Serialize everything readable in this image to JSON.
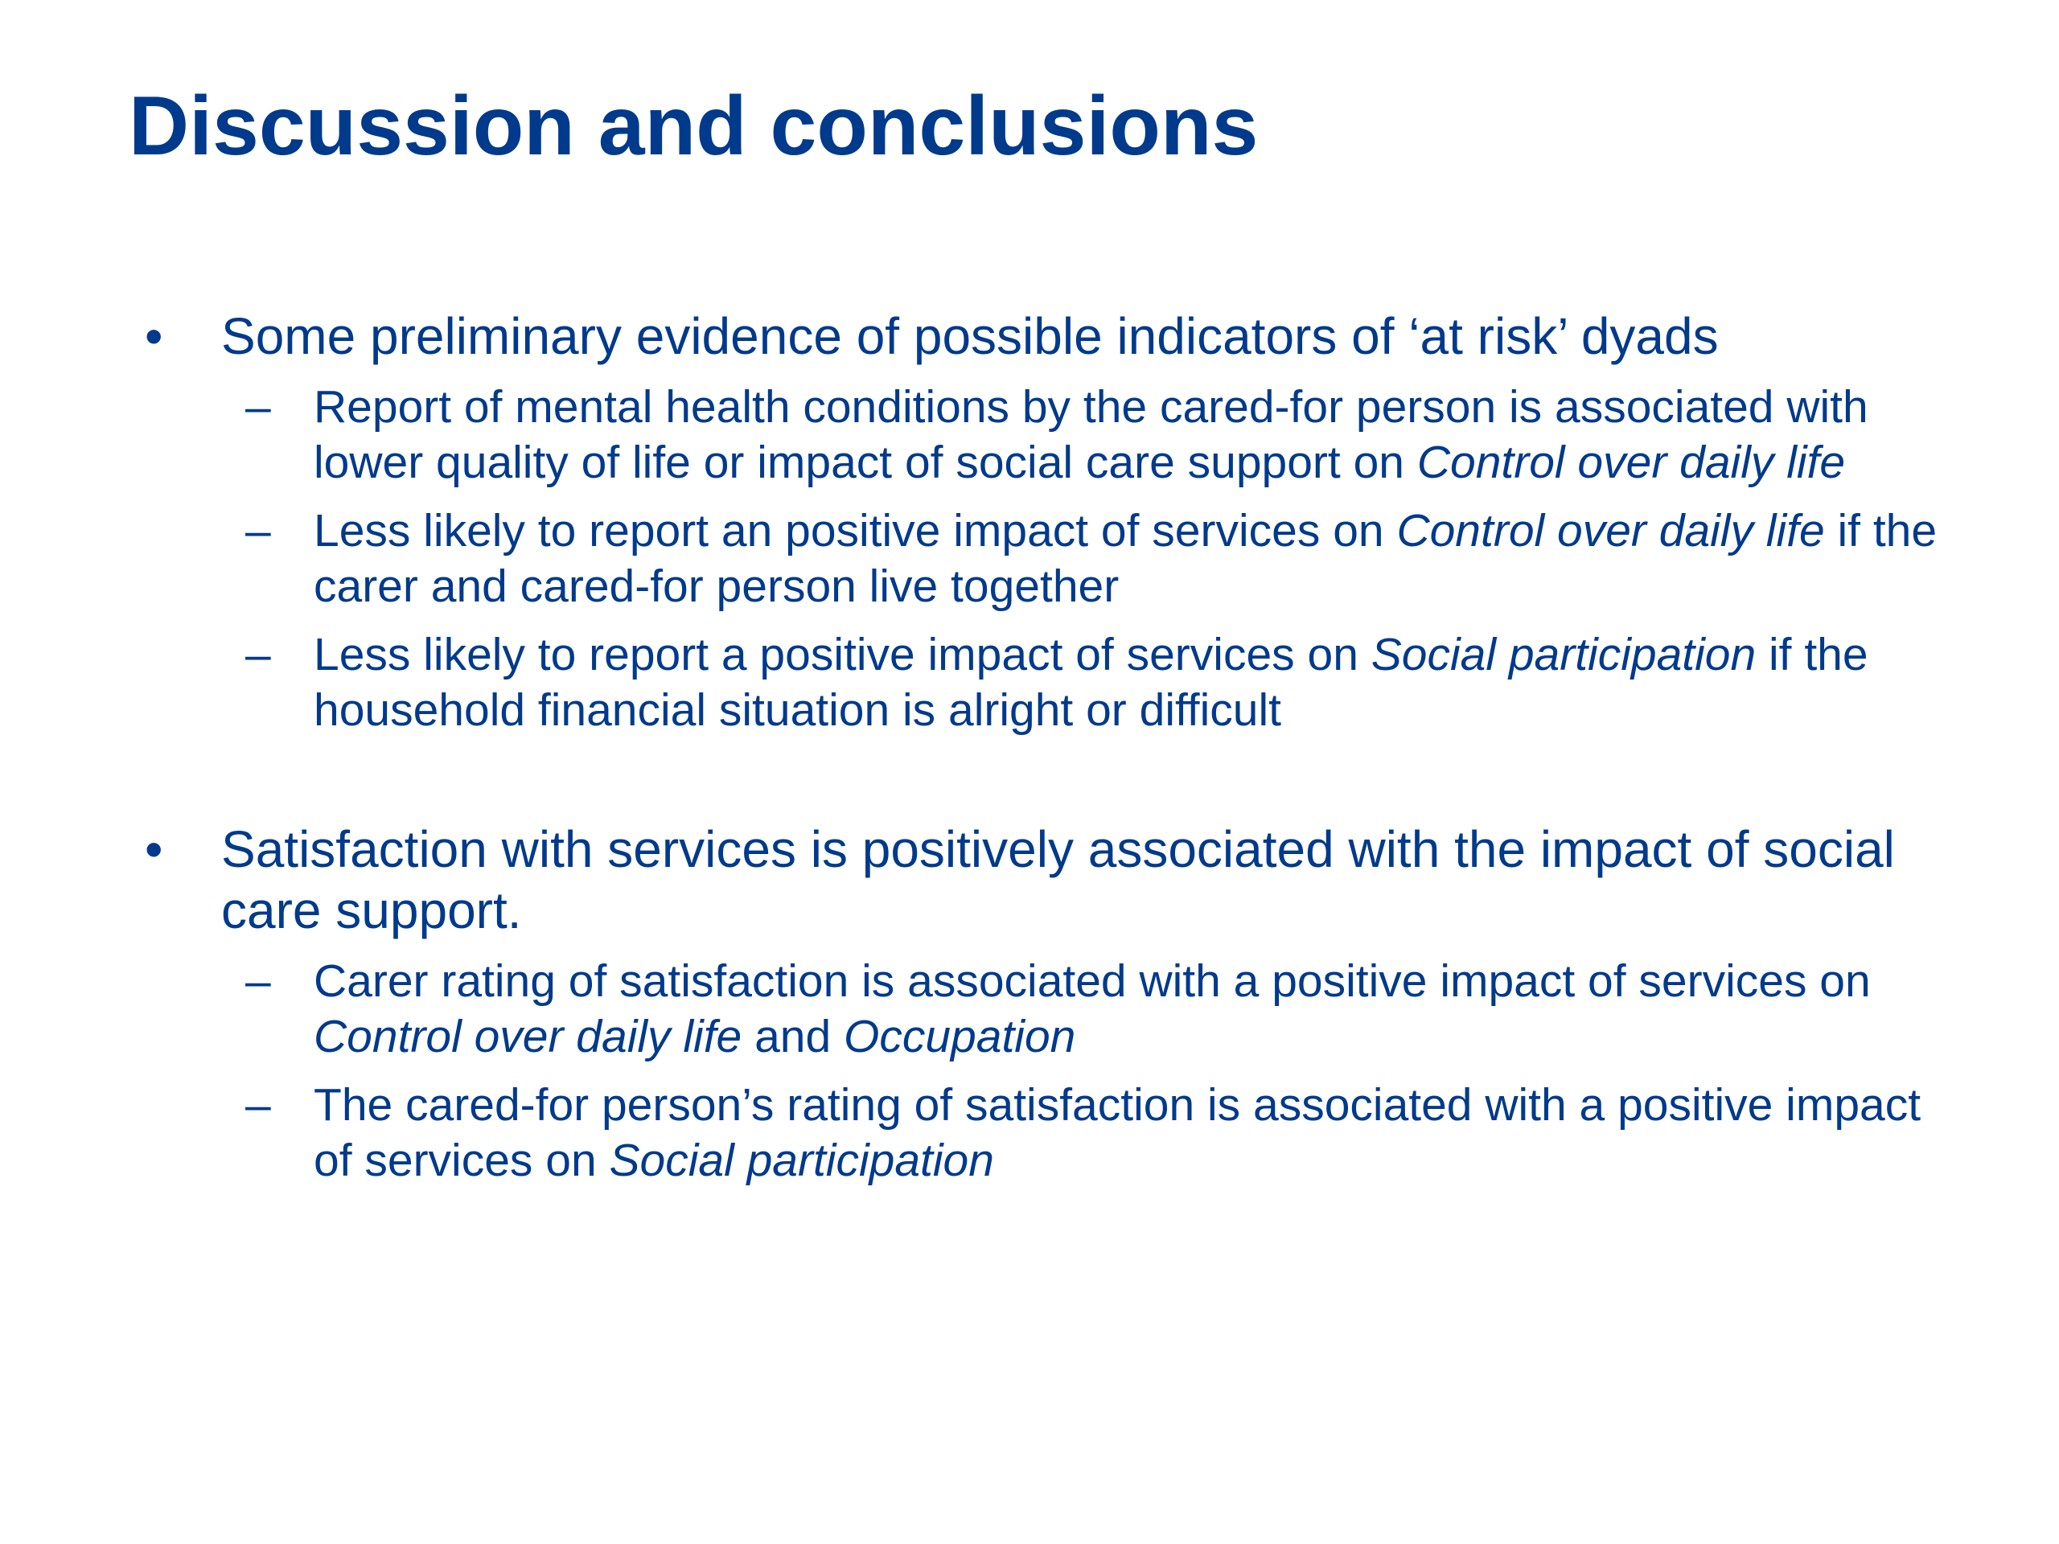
{
  "title": "Discussion and conclusions",
  "bullets": [
    {
      "text": "Some preliminary evidence of possible indicators of ‘at risk’ dyads",
      "subs": [
        {
          "p1": "Report of mental health conditions by the cared-for person is associated with lower quality of life or impact of social care support on ",
          "i1": "Control over daily life",
          "p2": ""
        },
        {
          "p1": "Less likely to report an positive impact of services on ",
          "i1": "Control over daily life",
          "p2": " if the carer and cared-for person live together"
        },
        {
          "p1": "Less likely to report a positive impact of services on ",
          "i1": "Social participation",
          "p2": " if the household financial situation is alright or difficult"
        }
      ]
    },
    {
      "text": "Satisfaction with services is positively associated with the impact of social care support.",
      "subs": [
        {
          "p1": "Carer rating of satisfaction is associated with a positive impact of services on ",
          "i1": "Control over daily life",
          "p2": " and ",
          "i2": "Occupation"
        },
        {
          "p1": "The cared-for person’s rating of satisfaction is associated with a positive impact of services on ",
          "i1": "Social participation",
          "p2": ""
        }
      ]
    }
  ]
}
